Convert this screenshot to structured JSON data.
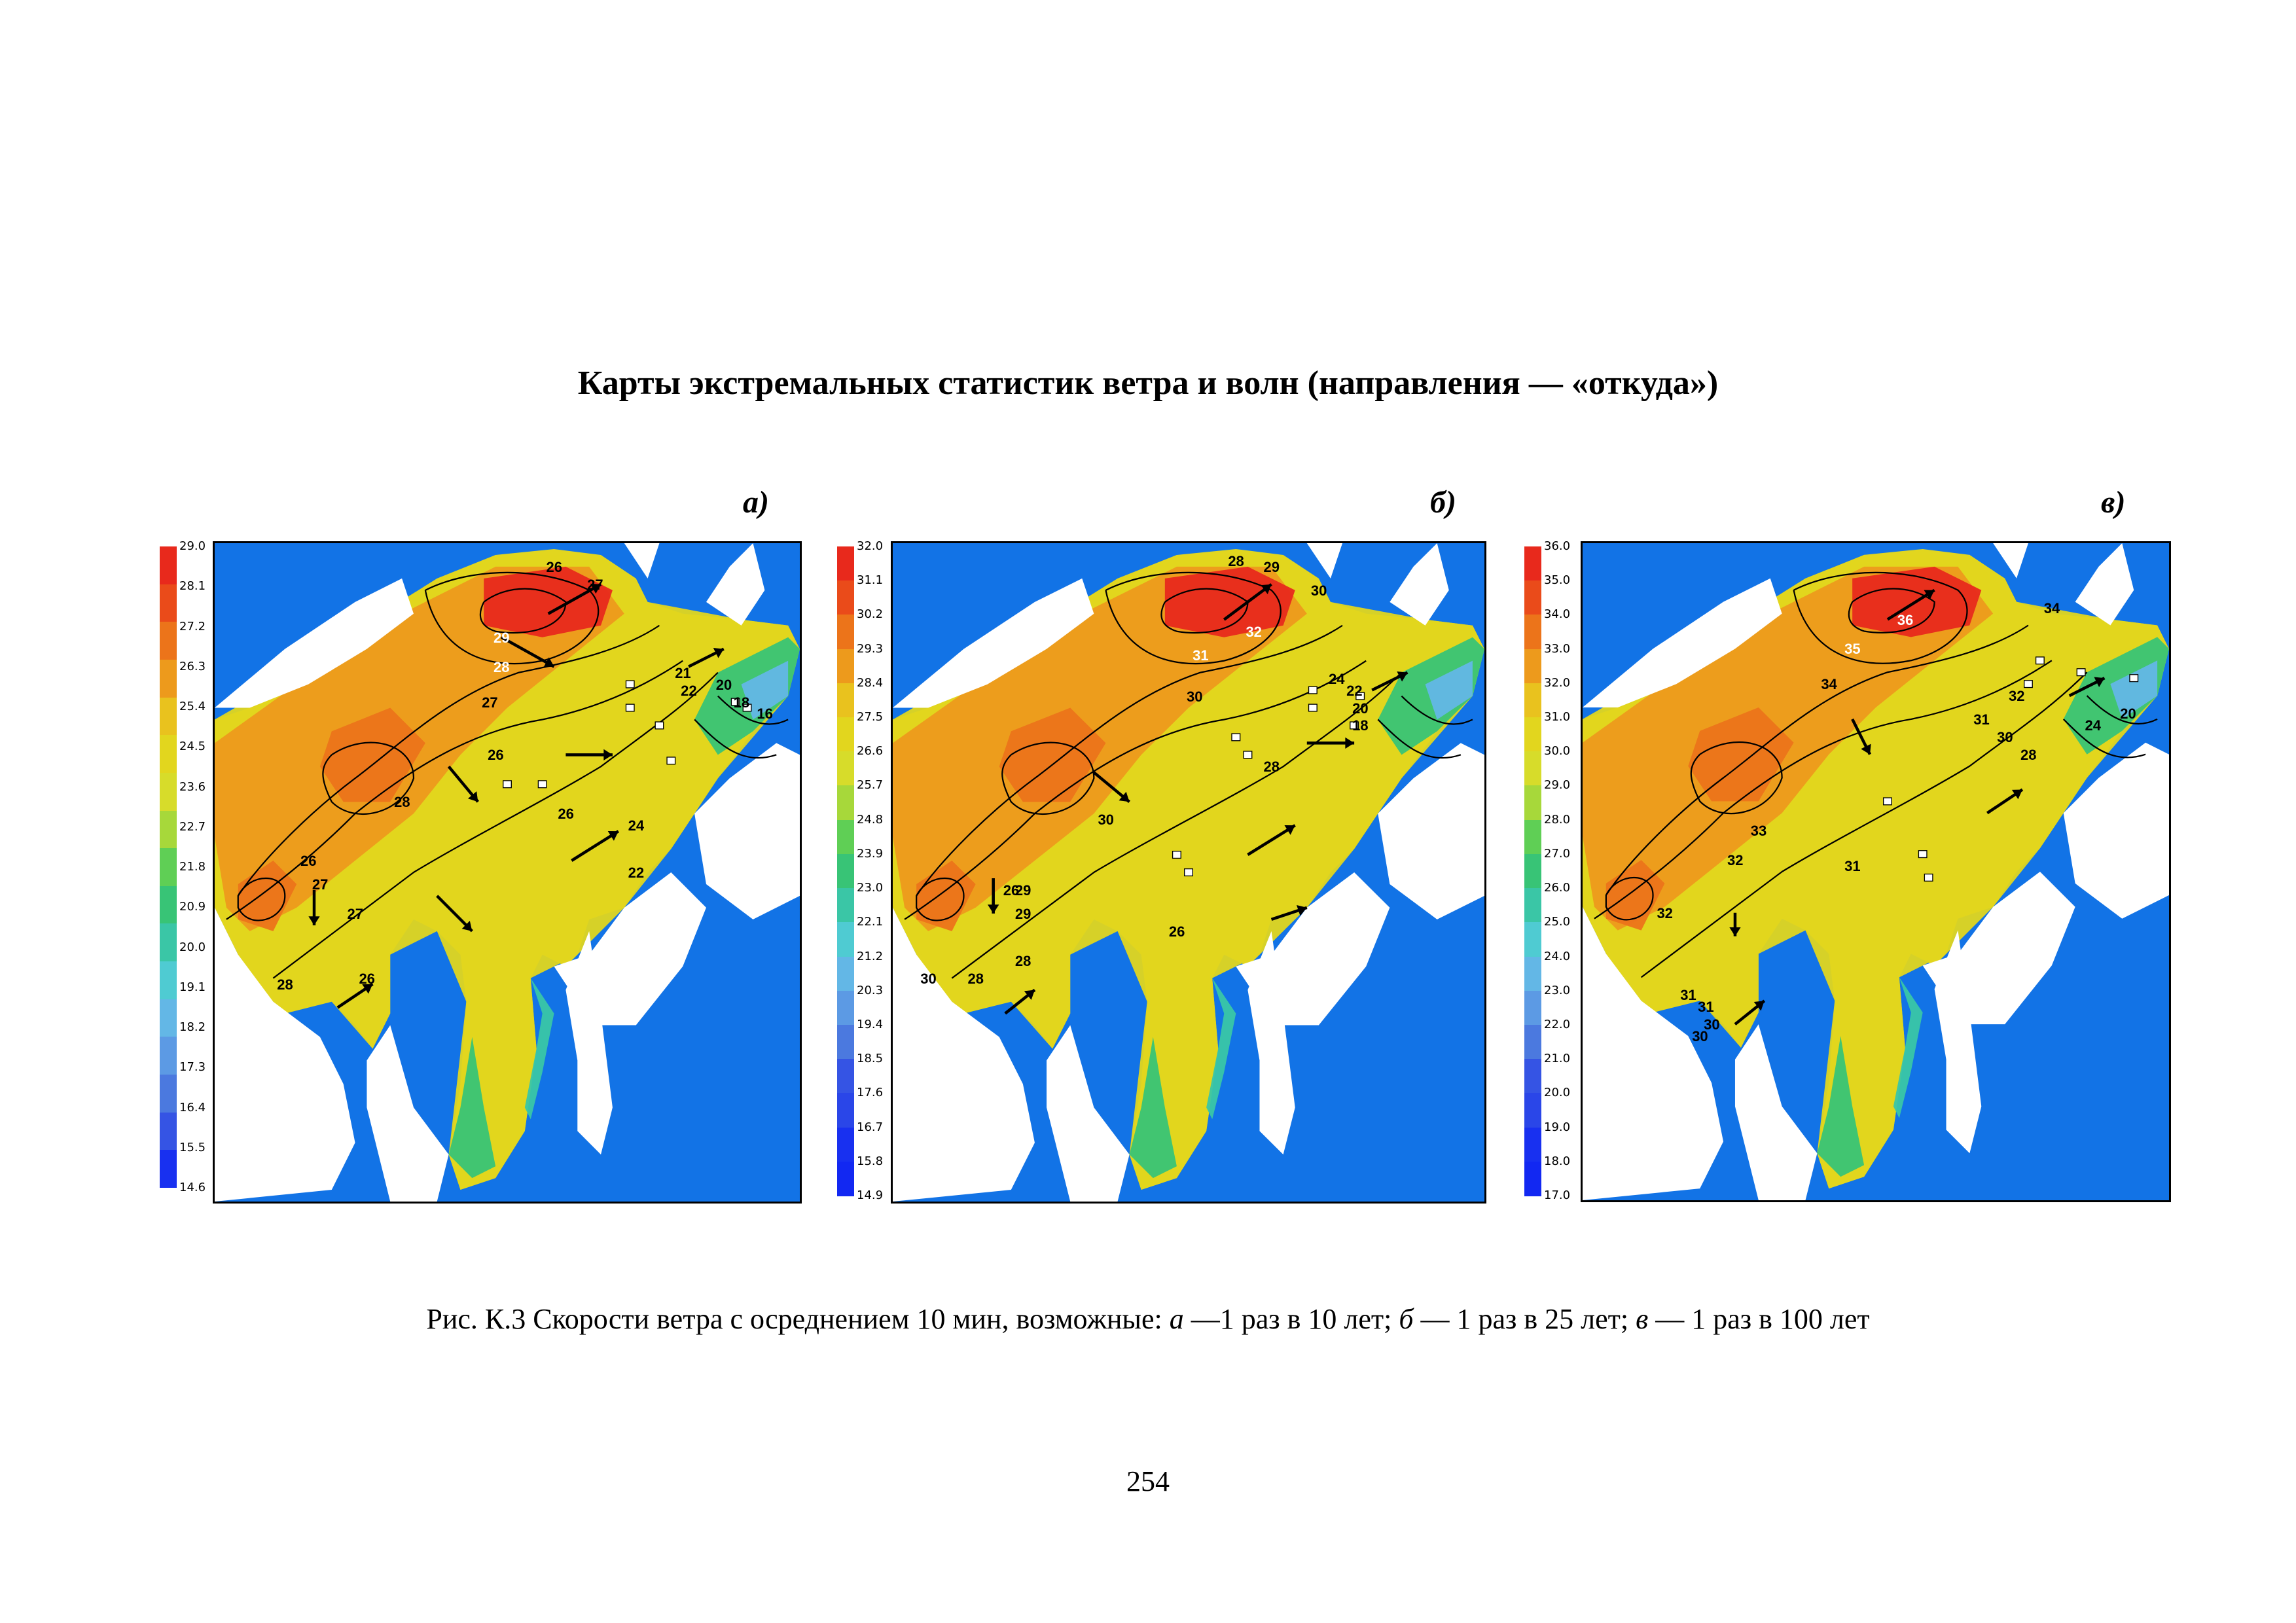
{
  "title": "Карты экстремальных статистик ветра и волн (направления — «откуда»)",
  "caption": {
    "prefix": "Рис. К.3 Скорости ветра с осреднением 10 мин, возможные: ",
    "a_letter": "а",
    "a_text": " —1 раз в 10 лет; ",
    "b_letter": "б",
    "b_text": " — 1 раз в 25 лет; ",
    "c_letter": "в",
    "c_text": " — 1 раз в 100 лет"
  },
  "page_number": "254",
  "colors": {
    "sea_background": "#1273e6",
    "land": "#ffffff",
    "contour": "#000000"
  },
  "panels": [
    {
      "letter": "а)",
      "legend": {
        "ticks": [
          "29.0",
          "28.1",
          "27.2",
          "26.3",
          "25.4",
          "24.5",
          "23.6",
          "22.7",
          "21.8",
          "20.9",
          "20.0",
          "19.1",
          "18.2",
          "17.3",
          "16.4",
          "15.5",
          "14.6"
        ],
        "colors": [
          "#e8291c",
          "#ea4b1a",
          "#ec741a",
          "#ed9a1c",
          "#e9c21e",
          "#e2d61e",
          "#d7dc2a",
          "#a7d83a",
          "#5fcf55",
          "#38c476",
          "#3ac6a6",
          "#4fcbd2",
          "#63b7e6",
          "#5c9ae4",
          "#4b79df",
          "#3554e4",
          "#1830f0"
        ]
      },
      "contour_labels": [
        "26",
        "27",
        "29",
        "28",
        "27",
        "26",
        "21",
        "22",
        "20",
        "18",
        "16",
        "28",
        "26",
        "24",
        "22",
        "26",
        "27",
        "27",
        "28",
        "26"
      ]
    },
    {
      "letter": "б)",
      "legend": {
        "ticks": [
          "32.0",
          "31.1",
          "30.2",
          "29.3",
          "28.4",
          "27.5",
          "26.6",
          "25.7",
          "24.8",
          "23.9",
          "23.0",
          "22.1",
          "21.2",
          "20.3",
          "19.4",
          "18.5",
          "17.6",
          "16.7",
          "15.8",
          "14.9"
        ],
        "colors": [
          "#e8291c",
          "#ea4b1a",
          "#ec741a",
          "#ed9a1c",
          "#e9c21e",
          "#e2d61e",
          "#d7dc2a",
          "#a7d83a",
          "#5fcf55",
          "#38c476",
          "#3ac6a6",
          "#4fcbd2",
          "#63b7e6",
          "#5c9ae4",
          "#4b79df",
          "#3554e4",
          "#2a46e8",
          "#1830f0",
          "#1228f2"
        ]
      },
      "contour_labels": [
        "28",
        "29",
        "30",
        "32",
        "31",
        "30",
        "24",
        "22",
        "20",
        "18",
        "28",
        "26",
        "30",
        "26",
        "28",
        "29",
        "29",
        "30",
        "28"
      ]
    },
    {
      "letter": "в)",
      "legend": {
        "ticks": [
          "36.0",
          "35.0",
          "34.0",
          "33.0",
          "32.0",
          "31.0",
          "30.0",
          "29.0",
          "28.0",
          "27.0",
          "26.0",
          "25.0",
          "24.0",
          "23.0",
          "22.0",
          "21.0",
          "20.0",
          "19.0",
          "18.0",
          "17.0"
        ],
        "colors": [
          "#e8291c",
          "#ea4b1a",
          "#ec741a",
          "#ed9a1c",
          "#e9c21e",
          "#e2d61e",
          "#d7dc2a",
          "#a7d83a",
          "#5fcf55",
          "#38c476",
          "#3ac6a6",
          "#4fcbd2",
          "#63b7e6",
          "#5c9ae4",
          "#4b79df",
          "#3554e4",
          "#2a46e8",
          "#1830f0",
          "#1228f2"
        ]
      },
      "contour_labels": [
        "36",
        "34",
        "35",
        "34",
        "32",
        "31",
        "30",
        "28",
        "24",
        "20",
        "33",
        "32",
        "31",
        "31",
        "30",
        "32",
        "31",
        "30"
      ]
    }
  ]
}
